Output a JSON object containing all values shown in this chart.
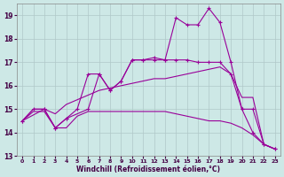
{
  "xlabel": "Windchill (Refroidissement éolien,°C)",
  "background_color": "#cde8e6",
  "grid_color": "#b0c8c8",
  "line_color": "#990099",
  "xlim": [
    -0.5,
    23.5
  ],
  "ylim": [
    13,
    19.5
  ],
  "yticks": [
    13,
    14,
    15,
    16,
    17,
    18,
    19
  ],
  "xticks": [
    0,
    1,
    2,
    3,
    4,
    5,
    6,
    7,
    8,
    9,
    10,
    11,
    12,
    13,
    14,
    15,
    16,
    17,
    18,
    19,
    20,
    21,
    22,
    23
  ],
  "series": [
    {
      "x": [
        0,
        1,
        2,
        3,
        4,
        5,
        6,
        7,
        8,
        9,
        10,
        11,
        12,
        13,
        14,
        15,
        16,
        17,
        18,
        19,
        20,
        21,
        22,
        23
      ],
      "y": [
        14.5,
        14.9,
        14.9,
        14.2,
        14.2,
        14.7,
        14.9,
        14.9,
        14.9,
        14.9,
        14.9,
        14.9,
        14.9,
        14.9,
        14.8,
        14.7,
        14.6,
        14.5,
        14.5,
        14.4,
        14.2,
        13.9,
        13.5,
        13.3
      ],
      "marker": false
    },
    {
      "x": [
        0,
        1,
        2,
        3,
        4,
        5,
        6,
        7,
        8,
        9,
        10,
        11,
        12,
        13,
        14,
        15,
        16,
        17,
        18,
        19,
        20,
        21,
        22,
        23
      ],
      "y": [
        14.5,
        15.0,
        15.0,
        14.8,
        15.2,
        15.4,
        15.6,
        15.8,
        15.9,
        16.0,
        16.1,
        16.2,
        16.3,
        16.3,
        16.4,
        16.5,
        16.6,
        16.7,
        16.8,
        16.5,
        15.5,
        15.5,
        13.5,
        13.3
      ],
      "marker": false
    },
    {
      "x": [
        0,
        1,
        2,
        3,
        4,
        5,
        6,
        7,
        8,
        9,
        10,
        11,
        12,
        13,
        14,
        15,
        16,
        17,
        18,
        19,
        20,
        21,
        22,
        23
      ],
      "y": [
        14.5,
        15.0,
        15.0,
        14.2,
        14.6,
        15.0,
        16.5,
        16.5,
        15.8,
        16.2,
        17.1,
        17.1,
        17.1,
        17.1,
        17.1,
        17.1,
        17.0,
        17.0,
        17.0,
        16.5,
        15.0,
        15.0,
        13.5,
        13.3
      ],
      "marker": true
    },
    {
      "x": [
        0,
        2,
        3,
        4,
        6,
        7,
        8,
        9,
        10,
        11,
        12,
        13,
        14,
        15,
        16,
        17,
        18,
        19,
        20,
        21,
        22,
        23
      ],
      "y": [
        14.5,
        15.0,
        14.2,
        14.6,
        15.0,
        16.5,
        15.8,
        16.2,
        17.1,
        17.1,
        17.2,
        17.1,
        18.9,
        18.6,
        18.6,
        19.3,
        18.7,
        17.0,
        15.0,
        14.0,
        13.5,
        13.3
      ],
      "marker": true
    }
  ]
}
